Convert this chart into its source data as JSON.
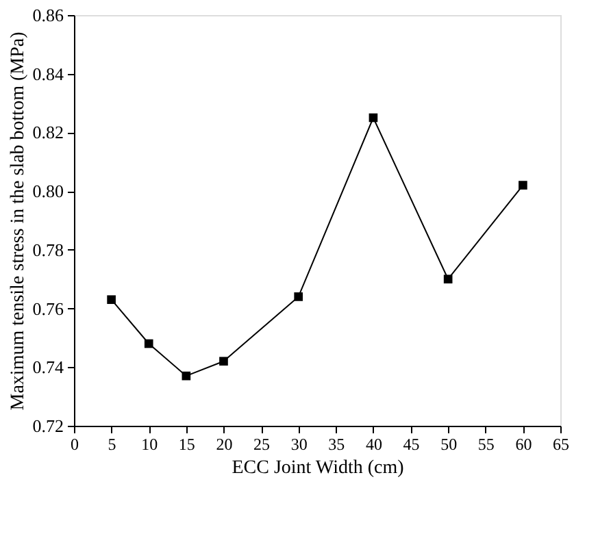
{
  "chart_data": {
    "type": "line",
    "xlabel": "ECC Joint Width (cm)",
    "ylabel": "Maximum tensile stress in the slab bottom (MPa)",
    "x": [
      5,
      10,
      15,
      20,
      30,
      40,
      50,
      60
    ],
    "series": [
      {
        "color": "#000000",
        "values": [
          0.763,
          0.748,
          0.737,
          0.742,
          0.764,
          0.825,
          0.77,
          0.802
        ]
      }
    ],
    "xlim": [
      0,
      65
    ],
    "xticks": [
      0,
      5,
      10,
      15,
      20,
      25,
      30,
      35,
      40,
      45,
      50,
      55,
      60,
      65
    ],
    "ylim": [
      0.72,
      0.86
    ],
    "yticks": [
      {
        "value": 0.72,
        "label": "0.72"
      },
      {
        "value": 0.74,
        "label": "0.74"
      },
      {
        "value": 0.76,
        "label": "0.76"
      },
      {
        "value": 0.78,
        "label": "0.78"
      },
      {
        "value": 0.8,
        "label": "0.80"
      },
      {
        "value": 0.82,
        "label": "0.82"
      },
      {
        "value": 0.84,
        "label": "0.84"
      },
      {
        "value": 0.86,
        "label": "0.86"
      }
    ],
    "marker": "square",
    "line_style": "solid",
    "grid": false,
    "legend": false
  }
}
